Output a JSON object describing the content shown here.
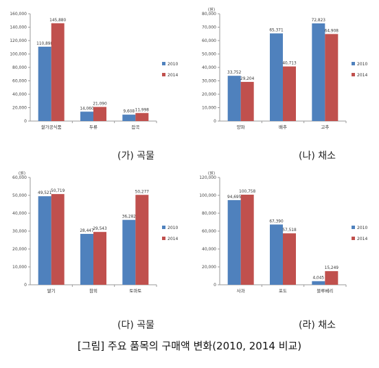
{
  "legend": [
    "2010",
    "2014"
  ],
  "colors": {
    "s2010": "#4f81bd",
    "s2014": "#c0504d"
  },
  "captions": [
    "(가) 곡물",
    "(나) 채소",
    "(다) 곡물",
    "(라) 채소"
  ],
  "figure_caption": "[그림] 주요 품목의 구매액 변화(2010, 2014 비교)",
  "chart_data": [
    {
      "type": "bar",
      "unit": "",
      "categories": [
        "쌀가공식품",
        "두류",
        "잡곡"
      ],
      "series": [
        {
          "name": "2010",
          "values": [
            110898,
            14060,
            9608
          ],
          "labels": [
            "110,898",
            "14,060",
            "9,608"
          ]
        },
        {
          "name": "2014",
          "values": [
            145880,
            21090,
            11998
          ],
          "labels": [
            "145,880",
            "21,090",
            "11,998"
          ]
        }
      ],
      "ylim": [
        0,
        160000
      ],
      "ystep": 20000,
      "yticks": [
        "0",
        "20,000",
        "40,000",
        "60,000",
        "80,000",
        "100,000",
        "120,000",
        "140,000",
        "160,000"
      ],
      "grid": false,
      "legend": "right"
    },
    {
      "type": "bar",
      "unit": "(원)",
      "categories": [
        "양파",
        "배추",
        "고추"
      ],
      "series": [
        {
          "name": "2010",
          "values": [
            33752,
            65371,
            72823
          ],
          "labels": [
            "33,752",
            "65,371",
            "72,823"
          ]
        },
        {
          "name": "2014",
          "values": [
            29204,
            40713,
            64908
          ],
          "labels": [
            "29,204",
            "40,713",
            "64,908"
          ]
        }
      ],
      "ylim": [
        0,
        80000
      ],
      "ystep": 10000,
      "yticks": [
        "0",
        "10,000",
        "20,000",
        "30,000",
        "40,000",
        "50,000",
        "60,000",
        "70,000",
        "80,000"
      ],
      "grid": false,
      "legend": "right"
    },
    {
      "type": "bar",
      "unit": "(원)",
      "categories": [
        "딸기",
        "참외",
        "토마토"
      ],
      "series": [
        {
          "name": "2010",
          "values": [
            49521,
            28447,
            36282
          ],
          "labels": [
            "49,521",
            "28,447",
            "36,282"
          ]
        },
        {
          "name": "2014",
          "values": [
            50719,
            29543,
            50277
          ],
          "labels": [
            "50,719",
            "29,543",
            "50,277"
          ]
        }
      ],
      "ylim": [
        0,
        60000
      ],
      "ystep": 10000,
      "yticks": [
        "0",
        "10,000",
        "20,000",
        "30,000",
        "40,000",
        "50,000",
        "60,000"
      ],
      "grid": false,
      "legend": "right"
    },
    {
      "type": "bar",
      "unit": "(원)",
      "categories": [
        "사과",
        "포도",
        "블루베리"
      ],
      "series": [
        {
          "name": "2010",
          "values": [
            94695,
            67390,
            4045
          ],
          "labels": [
            "94,695",
            "67,390",
            "4,045"
          ]
        },
        {
          "name": "2014",
          "values": [
            100758,
            57518,
            15249
          ],
          "labels": [
            "100,758",
            "57,518",
            "15,249"
          ]
        }
      ],
      "ylim": [
        0,
        120000
      ],
      "ystep": 20000,
      "yticks": [
        "0",
        "20,000",
        "40,000",
        "60,000",
        "80,000",
        "100,000",
        "120,000"
      ],
      "grid": false,
      "legend": "right"
    }
  ]
}
